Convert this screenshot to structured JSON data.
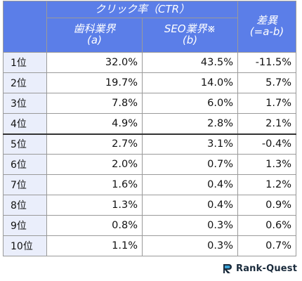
{
  "header": {
    "group_title": "クリック率（CTR）",
    "col_a": "歯科業界",
    "col_a_sub": "(a)",
    "col_b": "SEO業界※",
    "col_b_sub": "(b)",
    "col_diff": "差異",
    "col_diff_sub": "(=a-b)"
  },
  "rows": [
    {
      "rank": "1位",
      "a": "32.0%",
      "b": "43.5%",
      "diff": "-11.5%"
    },
    {
      "rank": "2位",
      "a": "19.7%",
      "b": "14.0%",
      "diff": "5.7%"
    },
    {
      "rank": "3位",
      "a": "7.8%",
      "b": "6.0%",
      "diff": "1.7%"
    },
    {
      "rank": "4位",
      "a": "4.9%",
      "b": "2.8%",
      "diff": "2.1%"
    },
    {
      "rank": "5位",
      "a": "2.7%",
      "b": "3.1%",
      "diff": "-0.4%"
    },
    {
      "rank": "6位",
      "a": "2.0%",
      "b": "0.7%",
      "diff": "1.3%"
    },
    {
      "rank": "7位",
      "a": "1.6%",
      "b": "0.4%",
      "diff": "1.2%"
    },
    {
      "rank": "8位",
      "a": "1.3%",
      "b": "0.4%",
      "diff": "0.9%"
    },
    {
      "rank": "9位",
      "a": "0.8%",
      "b": "0.3%",
      "diff": "0.6%"
    },
    {
      "rank": "10位",
      "a": "1.1%",
      "b": "0.3%",
      "diff": "0.7%"
    }
  ],
  "logo": {
    "text": "Rank-Quest",
    "icon": "rank-quest-logo-icon"
  },
  "colors": {
    "header_bg": "#5b7ee8",
    "rank_bg": "#eaeefb",
    "logo_accent": "#3aa3d8"
  }
}
